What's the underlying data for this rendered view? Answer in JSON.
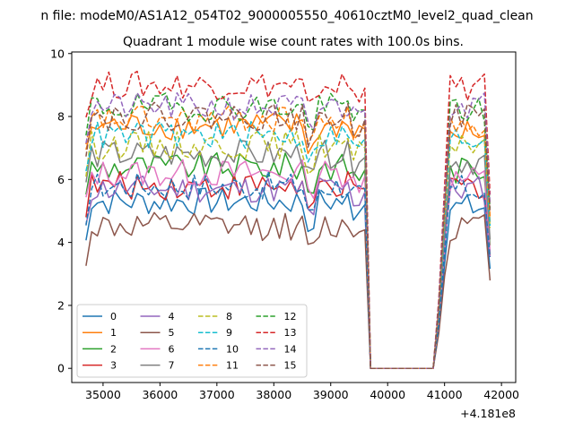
{
  "figure": {
    "suptitle": "n file: modeM0/AS1A12_054T02_9000005550_40610cztM0_level2_quad_clean",
    "title": "Quadrant 1 module wise count rates with 100.0s bins.",
    "x_offset_label": "+4.181e8"
  },
  "chart_data": {
    "type": "line",
    "title": "Quadrant 1 module wise count rates with 100.0s bins.",
    "x_offset": 418100000,
    "xlim": [
      34450,
      42250
    ],
    "ylim": [
      -0.45,
      10.05
    ],
    "xticks": [
      35000,
      36000,
      37000,
      38000,
      39000,
      40000,
      41000,
      42000
    ],
    "xtick_labels": [
      "35000",
      "36000",
      "37000",
      "38000",
      "39000",
      "40000",
      "41000",
      "42000"
    ],
    "yticks": [
      0,
      2,
      4,
      6,
      8,
      10
    ],
    "ytick_labels": [
      "0",
      "2",
      "4",
      "6",
      "8",
      "10"
    ],
    "x_segments": [
      [
        34700,
        39600
      ],
      [
        39600,
        40800
      ],
      [
        40800,
        41800
      ]
    ],
    "legend": {
      "location": "lower-left",
      "columns": 4
    },
    "series": [
      {
        "name": "0",
        "color": "#1f77b4",
        "dash": "solid",
        "level1": 5.3,
        "level2": 5.1
      },
      {
        "name": "1",
        "color": "#ff7f0e",
        "dash": "solid",
        "level1": 7.7,
        "level2": 7.5
      },
      {
        "name": "2",
        "color": "#2ca02c",
        "dash": "solid",
        "level1": 6.4,
        "level2": 6.3
      },
      {
        "name": "3",
        "color": "#d62728",
        "dash": "solid",
        "level1": 5.8,
        "level2": 5.8
      },
      {
        "name": "4",
        "color": "#9467bd",
        "dash": "solid",
        "level1": 5.7,
        "level2": 5.7
      },
      {
        "name": "5",
        "color": "#8c564b",
        "dash": "solid",
        "level1": 4.5,
        "level2": 4.5
      },
      {
        "name": "6",
        "color": "#e377c2",
        "dash": "solid",
        "level1": 6.2,
        "level2": 6.0
      },
      {
        "name": "7",
        "color": "#7f7f7f",
        "dash": "solid",
        "level1": 6.8,
        "level2": 6.6
      },
      {
        "name": "8",
        "color": "#bcbd22",
        "dash": "dashed",
        "level1": 7.1,
        "level2": 7.2
      },
      {
        "name": "9",
        "color": "#17becf",
        "dash": "dashed",
        "level1": 7.4,
        "level2": 7.3
      },
      {
        "name": "10",
        "color": "#1f77b4",
        "dash": "dashed",
        "level1": 5.8,
        "level2": 5.7
      },
      {
        "name": "11",
        "color": "#ff7f0e",
        "dash": "dashed",
        "level1": 7.9,
        "level2": 7.8
      },
      {
        "name": "12",
        "color": "#2ca02c",
        "dash": "dashed",
        "level1": 8.3,
        "level2": 8.2
      },
      {
        "name": "13",
        "color": "#d62728",
        "dash": "dashed",
        "level1": 9.0,
        "level2": 8.9
      },
      {
        "name": "14",
        "color": "#9467bd",
        "dash": "dashed",
        "level1": 8.3,
        "level2": 8.4
      },
      {
        "name": "15",
        "color": "#8c564b",
        "dash": "dashed",
        "level1": 8.0,
        "level2": 8.0
      }
    ]
  }
}
